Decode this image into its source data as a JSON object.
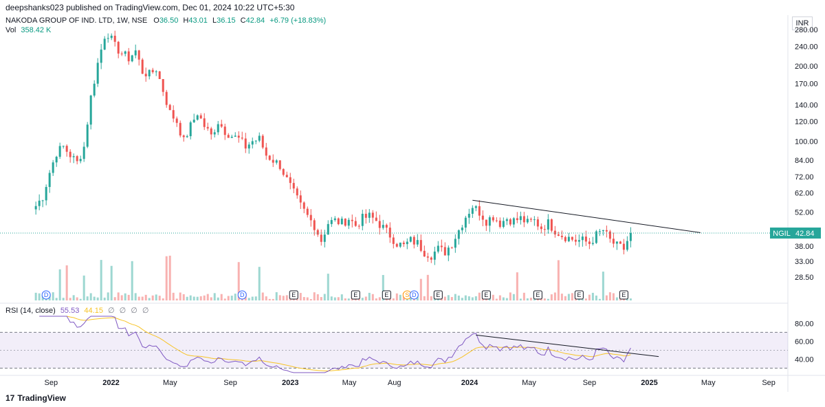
{
  "header": {
    "publish_line": "deepshanks023 published on TradingView.com, Dec 01, 2024 10:22 UTC+5:30"
  },
  "legend": {
    "symbol": "NAKODA GROUP OF IND. LTD, 1W, NSE",
    "o_label": "O",
    "o_value": "36.50",
    "h_label": "H",
    "h_value": "43.01",
    "l_label": "L",
    "l_value": "36.15",
    "c_label": "C",
    "c_value": "42.84",
    "change": "+6.79 (+18.83%)",
    "vol_label": "Vol",
    "vol_value": "358.42 K"
  },
  "rsi_legend": {
    "label": "RSI (14, close)",
    "rsi_value": "55.53",
    "ma_value": "44.15",
    "extra": "∅ ∅ ∅ ∅"
  },
  "currency": "INR",
  "price_tag": {
    "symbol": "NGIL",
    "value": "42.84"
  },
  "footer": {
    "brand": "TradingView",
    "logo_glyph": "17"
  },
  "colors": {
    "up": "#26a69a",
    "down": "#ef5350",
    "rsi": "#7e57c2",
    "rsi_ma": "#f7c325",
    "tag": "#26a69a"
  },
  "chart_data": {
    "type": "candlestick",
    "scale": "log",
    "y_ticks": [
      280,
      240,
      200,
      170,
      140,
      120,
      100,
      84,
      72,
      62,
      52,
      38,
      33,
      28.5
    ],
    "y_tick_labels": [
      "280.00",
      "240.00",
      "200.00",
      "170.00",
      "140.00",
      "120.00",
      "100.00",
      "84.00",
      "72.00",
      "62.00",
      "52.00",
      "38.00",
      "33.00",
      "28.50"
    ],
    "x_ticks": [
      {
        "label": "Sep",
        "date": "2021-09-01",
        "bold": false
      },
      {
        "label": "2022",
        "date": "2022-01-01",
        "bold": true
      },
      {
        "label": "May",
        "date": "2022-05-01",
        "bold": false
      },
      {
        "label": "Sep",
        "date": "2022-09-01",
        "bold": false
      },
      {
        "label": "2023",
        "date": "2023-01-01",
        "bold": true
      },
      {
        "label": "May",
        "date": "2023-05-01",
        "bold": false
      },
      {
        "label": "Aug",
        "date": "2023-08-01",
        "bold": false
      },
      {
        "label": "2024",
        "date": "2024-01-01",
        "bold": true
      },
      {
        "label": "May",
        "date": "2024-05-01",
        "bold": false
      },
      {
        "label": "Sep",
        "date": "2024-09-01",
        "bold": false
      },
      {
        "label": "2025",
        "date": "2025-01-01",
        "bold": true
      },
      {
        "label": "May",
        "date": "2025-05-01",
        "bold": false
      },
      {
        "label": "Sep",
        "date": "2025-09-01",
        "bold": false
      }
    ],
    "price_path": [
      [
        "2021-08-01",
        55
      ],
      [
        "2021-08-15",
        60
      ],
      [
        "2021-08-29",
        75
      ],
      [
        "2021-09-12",
        90
      ],
      [
        "2021-09-26",
        95
      ],
      [
        "2021-10-10",
        88
      ],
      [
        "2021-10-24",
        82
      ],
      [
        "2021-11-07",
        95
      ],
      [
        "2021-11-21",
        150
      ],
      [
        "2021-12-05",
        205
      ],
      [
        "2021-12-19",
        265
      ],
      [
        "2021-12-26",
        270
      ],
      [
        "2022-01-09",
        240
      ],
      [
        "2022-01-23",
        225
      ],
      [
        "2022-02-06",
        215
      ],
      [
        "2022-02-20",
        230
      ],
      [
        "2022-03-06",
        190
      ],
      [
        "2022-03-20",
        185
      ],
      [
        "2022-04-03",
        195
      ],
      [
        "2022-04-17",
        160
      ],
      [
        "2022-05-01",
        130
      ],
      [
        "2022-05-15",
        120
      ],
      [
        "2022-05-29",
        100
      ],
      [
        "2022-06-12",
        115
      ],
      [
        "2022-06-26",
        130
      ],
      [
        "2022-07-10",
        115
      ],
      [
        "2022-07-24",
        105
      ],
      [
        "2022-08-07",
        120
      ],
      [
        "2022-08-21",
        110
      ],
      [
        "2022-09-04",
        105
      ],
      [
        "2022-09-18",
        102
      ],
      [
        "2022-10-02",
        95
      ],
      [
        "2022-10-16",
        100
      ],
      [
        "2022-10-30",
        102
      ],
      [
        "2022-11-13",
        88
      ],
      [
        "2022-11-27",
        84
      ],
      [
        "2022-12-11",
        80
      ],
      [
        "2022-12-25",
        70
      ],
      [
        "2023-01-08",
        62
      ],
      [
        "2023-01-22",
        55
      ],
      [
        "2023-02-05",
        50
      ],
      [
        "2023-02-19",
        46
      ],
      [
        "2023-03-05",
        40
      ],
      [
        "2023-03-19",
        47
      ],
      [
        "2023-04-02",
        48
      ],
      [
        "2023-04-16",
        47
      ],
      [
        "2023-04-30",
        49
      ],
      [
        "2023-05-14",
        46
      ],
      [
        "2023-05-28",
        49
      ],
      [
        "2023-06-11",
        50
      ],
      [
        "2023-06-25",
        48
      ],
      [
        "2023-07-09",
        45
      ],
      [
        "2023-07-23",
        42
      ],
      [
        "2023-08-06",
        39
      ],
      [
        "2023-08-20",
        38
      ],
      [
        "2023-09-03",
        40
      ],
      [
        "2023-09-17",
        39
      ],
      [
        "2023-10-01",
        36
      ],
      [
        "2023-10-15",
        35
      ],
      [
        "2023-10-29",
        37
      ],
      [
        "2023-11-12",
        36
      ],
      [
        "2023-11-26",
        39
      ],
      [
        "2023-12-10",
        44
      ],
      [
        "2023-12-24",
        50
      ],
      [
        "2024-01-07",
        55
      ],
      [
        "2024-01-21",
        52
      ],
      [
        "2024-02-04",
        48
      ],
      [
        "2024-02-18",
        50
      ],
      [
        "2024-03-03",
        47
      ],
      [
        "2024-03-17",
        49
      ],
      [
        "2024-03-31",
        48
      ],
      [
        "2024-04-14",
        49
      ],
      [
        "2024-04-28",
        47
      ],
      [
        "2024-05-12",
        48
      ],
      [
        "2024-05-26",
        45
      ],
      [
        "2024-06-09",
        47
      ],
      [
        "2024-06-23",
        44
      ],
      [
        "2024-07-07",
        42
      ],
      [
        "2024-07-21",
        41
      ],
      [
        "2024-08-04",
        40
      ],
      [
        "2024-08-18",
        40
      ],
      [
        "2024-09-01",
        39
      ],
      [
        "2024-09-15",
        42
      ],
      [
        "2024-09-29",
        44
      ],
      [
        "2024-10-13",
        40
      ],
      [
        "2024-10-27",
        38
      ],
      [
        "2024-11-10",
        37
      ],
      [
        "2024-11-24",
        42.84
      ]
    ],
    "trendline_price": [
      [
        "2024-01-07",
        58
      ],
      [
        "2025-04-15",
        43
      ]
    ],
    "trendline_rsi": [
      [
        "2024-01-14",
        67
      ],
      [
        "2025-01-20",
        43
      ]
    ],
    "current_price": 42.84,
    "events": [
      {
        "letter": "D",
        "date": "2021-08-22",
        "kind": "dividend"
      },
      {
        "letter": "D",
        "date": "2022-09-25",
        "kind": "dividend"
      },
      {
        "letter": "E",
        "date": "2023-01-08",
        "kind": "earnings"
      },
      {
        "letter": "E",
        "date": "2023-05-14",
        "kind": "earnings"
      },
      {
        "letter": "E",
        "date": "2023-07-16",
        "kind": "earnings"
      },
      {
        "letter": "S",
        "date": "2023-08-27",
        "kind": "split"
      },
      {
        "letter": "D",
        "date": "2023-09-10",
        "kind": "dividend"
      },
      {
        "letter": "E",
        "date": "2023-10-29",
        "kind": "earnings"
      },
      {
        "letter": "E",
        "date": "2024-02-04",
        "kind": "earnings"
      },
      {
        "letter": "E",
        "date": "2024-05-19",
        "kind": "earnings"
      },
      {
        "letter": "E",
        "date": "2024-08-11",
        "kind": "earnings"
      },
      {
        "letter": "E",
        "date": "2024-11-10",
        "kind": "earnings"
      }
    ],
    "rsi": {
      "ticks": [
        80,
        60,
        40
      ],
      "tick_labels": [
        "80.00",
        "60.00",
        "40.00"
      ],
      "band": [
        30,
        70
      ],
      "midline": 50,
      "range": [
        25,
        88
      ]
    }
  }
}
